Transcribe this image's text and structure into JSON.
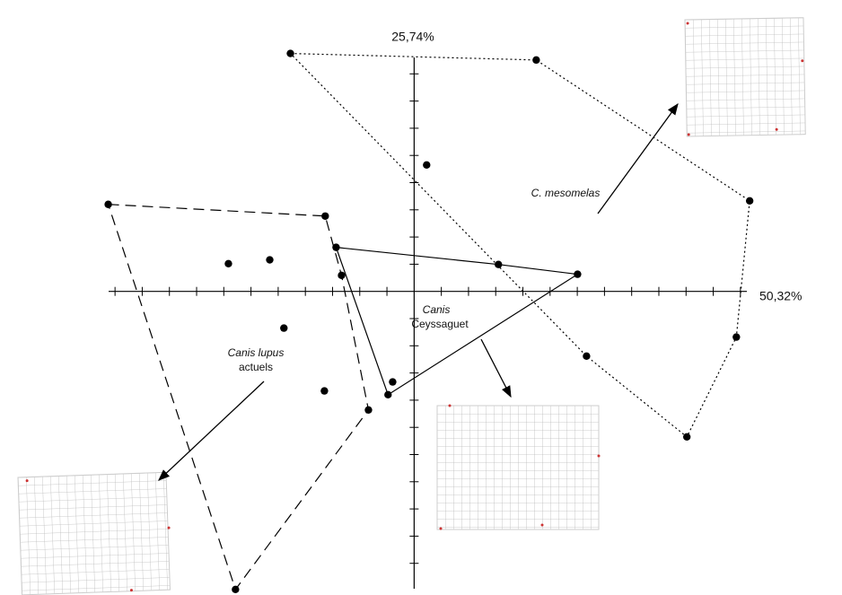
{
  "chart_data": {
    "type": "scatter",
    "xlabel": "50,32%",
    "ylabel": "25,74%",
    "xlim": [
      -0.115,
      0.125
    ],
    "ylim": [
      -0.11,
      0.09
    ],
    "xticks": [
      -0.11,
      -0.1,
      -0.09,
      -0.08,
      -0.07,
      -0.06,
      -0.05,
      -0.04,
      -0.03,
      -0.02,
      -0.01,
      0.01,
      0.02,
      0.03,
      0.04,
      0.05,
      0.06,
      0.07,
      0.08,
      0.09,
      0.1,
      0.11,
      0.12
    ],
    "yticks": [
      -0.1,
      -0.09,
      -0.08,
      -0.07,
      -0.06,
      -0.05,
      -0.04,
      -0.03,
      -0.02,
      -0.01,
      0.01,
      0.02,
      0.03,
      0.04,
      0.05,
      0.06,
      0.07,
      0.08
    ],
    "series": [
      {
        "color": "#000000",
        "hull": "dotted",
        "x": [
          -0.0455,
          0.0449,
          0.1234,
          0.1185,
          0.1003,
          0.0634,
          0.0046
        ],
        "values": [
          0.0875,
          0.0851,
          0.0333,
          -0.0168,
          -0.0535,
          -0.0238,
          0.0465
        ]
      },
      {
        "color": "#000000",
        "hull": "solid",
        "x": [
          -0.0287,
          0.0601,
          -0.0096,
          0.031,
          -0.0079
        ],
        "values": [
          0.0162,
          0.0063,
          -0.038,
          0.0099,
          -0.0333
        ]
      },
      {
        "color": "#000000",
        "hull": "dashed",
        "x": [
          -0.1125,
          -0.0327,
          -0.0168,
          -0.0657,
          -0.0683,
          -0.0531,
          -0.0479,
          -0.033,
          -0.0267
        ],
        "values": [
          0.032,
          0.0277,
          -0.0436,
          -0.1096,
          0.0102,
          0.0116,
          -0.0135,
          -0.0366,
          0.0059
        ]
      }
    ],
    "annotations": [
      {
        "lines": [
          "C. mesomelas"
        ]
      },
      {
        "lines": [
          "Canis lupus",
          "actuels"
        ]
      },
      {
        "lines": [
          "Canis",
          "Ceyssaguet"
        ]
      }
    ]
  }
}
